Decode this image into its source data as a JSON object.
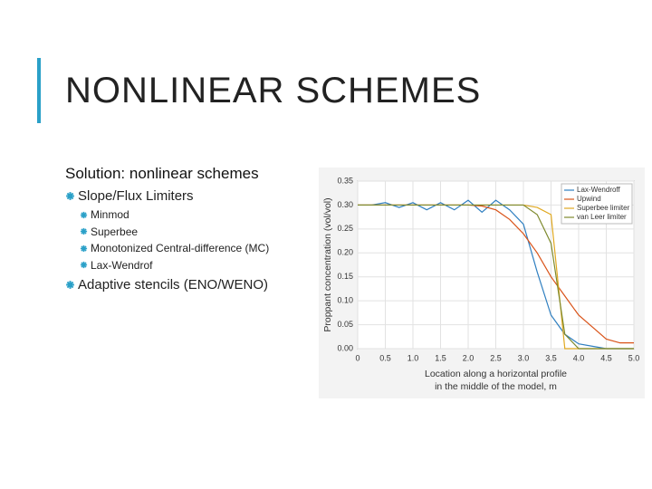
{
  "slide": {
    "title": "NONLINEAR SCHEMES",
    "heading": "Solution: nonlinear schemes",
    "bullets": [
      {
        "text": "Slope/Flux Limiters",
        "sub": [
          "Minmod",
          "Superbee",
          "Monotonized Central-difference (MC)",
          "Lax-Wendrof"
        ]
      },
      {
        "text": "Adaptive stencils (ENO/WENO)"
      }
    ]
  },
  "chart_data": {
    "type": "line",
    "ylabel": "Proppant concentration (vol/vol)",
    "xlabel": [
      "Location along a horizontal profile",
      "in the middle of the model, m"
    ],
    "x": [
      0,
      0.25,
      0.5,
      0.75,
      1.0,
      1.25,
      1.5,
      1.75,
      2.0,
      2.25,
      2.5,
      2.75,
      3.0,
      3.25,
      3.5,
      3.75,
      4.0,
      4.25,
      4.5,
      4.75,
      5.0
    ],
    "xlim": [
      0,
      5
    ],
    "xticks": [
      0,
      0.5,
      {
        "value": 1,
        "label": "1.0"
      },
      1.5,
      {
        "value": 2,
        "label": "2.0"
      },
      2.5,
      {
        "value": 3,
        "label": "3.0"
      },
      3.5,
      {
        "value": 4,
        "label": "4.0"
      },
      4.5,
      {
        "value": 5,
        "label": "5.0"
      }
    ],
    "ylim": [
      0,
      0.35
    ],
    "yticks": [
      {
        "value": 0,
        "label": "0.00"
      },
      0.05,
      {
        "value": 0.1,
        "label": "0.10"
      },
      0.15,
      {
        "value": 0.2,
        "label": "0.20"
      },
      0.25,
      {
        "value": 0.3,
        "label": "0.30"
      },
      0.35
    ],
    "grid": true,
    "legend": "top-right",
    "series": [
      {
        "name": "Lax-Wendroff",
        "color": "#2f7fc0",
        "values": [
          0.3,
          0.3,
          0.305,
          0.295,
          0.305,
          0.29,
          0.305,
          0.29,
          0.31,
          0.285,
          0.31,
          0.29,
          0.26,
          0.16,
          0.07,
          0.03,
          0.01,
          0.005,
          0,
          0,
          0
        ]
      },
      {
        "name": "Upwind",
        "color": "#d95319",
        "values": [
          0.3,
          0.3,
          0.3,
          0.3,
          0.3,
          0.3,
          0.3,
          0.3,
          0.3,
          0.298,
          0.29,
          0.27,
          0.24,
          0.2,
          0.15,
          0.11,
          0.07,
          0.045,
          0.02,
          0.012,
          0.012
        ]
      },
      {
        "name": "Superbee limiter",
        "color": "#e0a820",
        "values": [
          0.3,
          0.3,
          0.3,
          0.3,
          0.3,
          0.3,
          0.3,
          0.3,
          0.3,
          0.3,
          0.3,
          0.3,
          0.3,
          0.295,
          0.28,
          0,
          0,
          0,
          0,
          0,
          0
        ]
      },
      {
        "name": "van Leer limiter",
        "color": "#7e8a2e",
        "values": [
          0.3,
          0.3,
          0.3,
          0.3,
          0.3,
          0.3,
          0.3,
          0.3,
          0.3,
          0.3,
          0.3,
          0.3,
          0.3,
          0.28,
          0.22,
          0.03,
          0,
          0,
          0,
          0,
          0
        ]
      }
    ]
  }
}
